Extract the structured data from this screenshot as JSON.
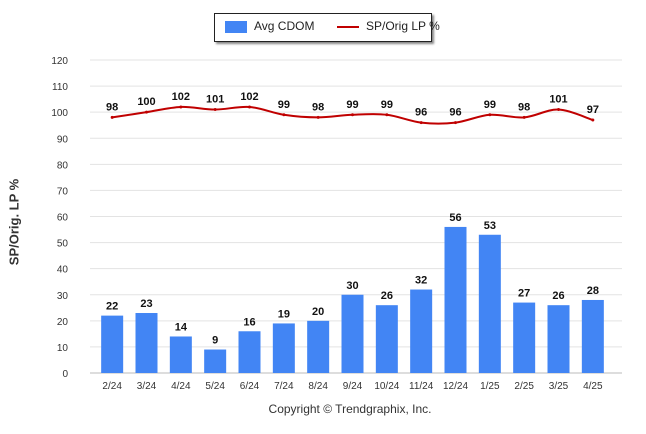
{
  "chart_data": {
    "type": "bar",
    "categories": [
      "2/24",
      "3/24",
      "4/24",
      "5/24",
      "6/24",
      "7/24",
      "8/24",
      "9/24",
      "10/24",
      "11/24",
      "12/24",
      "1/25",
      "2/25",
      "3/25",
      "4/25"
    ],
    "series": [
      {
        "name": "Avg CDOM",
        "type": "bar",
        "color": "#4285f4",
        "values": [
          22,
          23,
          14,
          9,
          16,
          19,
          20,
          30,
          26,
          32,
          56,
          53,
          27,
          26,
          28
        ]
      },
      {
        "name": "SP/Orig LP %",
        "type": "line",
        "color": "#c00000",
        "values": [
          98,
          100,
          102,
          101,
          102,
          99,
          98,
          99,
          99,
          96,
          96,
          99,
          98,
          101,
          97
        ]
      }
    ],
    "ylabel": "SP/Orig. LP %",
    "ylim": [
      0,
      120
    ],
    "yticks": [
      0,
      10,
      20,
      30,
      40,
      50,
      60,
      70,
      80,
      90,
      100,
      110,
      120
    ],
    "grid": true,
    "legend": "top-center"
  },
  "footer": {
    "copyright": "Copyright © Trendgraphix, Inc."
  }
}
